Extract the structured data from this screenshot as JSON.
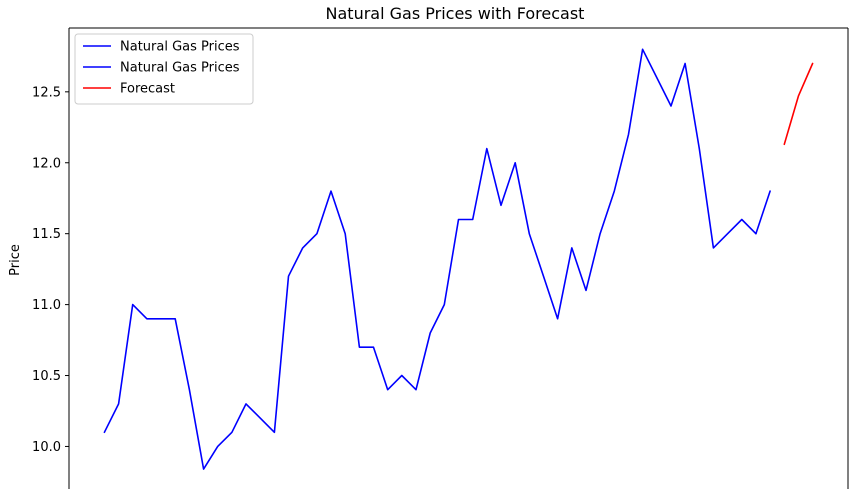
{
  "chart_data": {
    "type": "line",
    "title": "Natural Gas Prices with Forecast",
    "xlabel": "",
    "ylabel": "Price",
    "ylim": [
      9.7,
      12.95
    ],
    "yticks": [
      "10.0",
      "10.5",
      "11.0",
      "11.5",
      "12.0",
      "12.5"
    ],
    "ytick_values": [
      10.0,
      10.5,
      11.0,
      11.5,
      12.0,
      12.5
    ],
    "grid": false,
    "legend_position": "top-left",
    "series": [
      {
        "name": "Natural Gas Prices",
        "color": "#0000ff",
        "x": [
          0,
          1,
          2,
          3,
          4,
          5,
          6,
          7,
          8,
          9,
          10,
          11,
          12,
          13,
          14,
          15,
          16,
          17,
          18,
          19,
          20,
          21,
          22,
          23,
          24,
          25,
          26,
          27,
          28,
          29,
          30,
          31,
          32,
          33,
          34,
          35,
          36,
          37,
          38,
          39,
          40,
          41,
          42,
          43,
          44,
          45,
          46
        ],
        "values": [
          10.1,
          10.3,
          11.0,
          10.9,
          10.9,
          10.9,
          10.4,
          9.84,
          10.0,
          10.1,
          10.3,
          10.2,
          10.1,
          11.2,
          11.4,
          11.5,
          11.8,
          11.5,
          10.7,
          10.7,
          10.4,
          10.5,
          10.4,
          10.8,
          11.0,
          11.6,
          11.6,
          12.1,
          11.7,
          12.0,
          11.5,
          11.2,
          10.9,
          11.4,
          11.1,
          11.5,
          11.8,
          12.2,
          12.8,
          12.6,
          12.4,
          12.7,
          12.1,
          11.4,
          11.5,
          11.6,
          11.5
        ]
      },
      {
        "name": "Natural Gas Prices",
        "color": "#0000ff",
        "x": [
          46,
          47
        ],
        "values": [
          11.5,
          11.8
        ]
      },
      {
        "name": "Forecast",
        "color": "#ff0000",
        "x": [
          48,
          49,
          50
        ],
        "values": [
          12.13,
          12.47,
          12.7
        ]
      }
    ]
  }
}
